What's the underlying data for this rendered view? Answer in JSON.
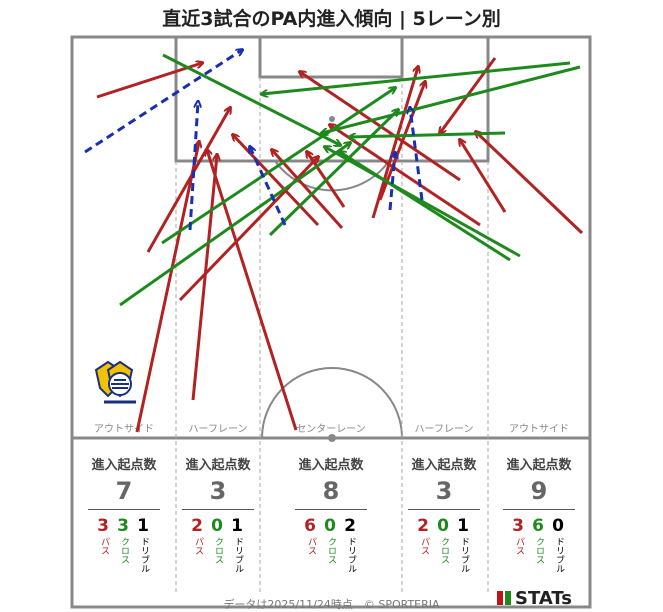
{
  "title": "直近3試合のPA内進入傾向 | 5レーン別",
  "footer": "データは2025/11/24時点　© SPORTERIA",
  "brand": "STATs",
  "colors": {
    "pass": "#b22222",
    "cross": "#1e8a1e",
    "dribble": "#1a2fb0",
    "line": "#888888"
  },
  "chart_data": {
    "type": "pitch-arrows",
    "lanes": [
      {
        "name": "アウトサイド",
        "head": "進入起点数",
        "total": "7",
        "pass": "3",
        "cross": "3",
        "dribble": "1"
      },
      {
        "name": "ハーフレーン",
        "head": "進入起点数",
        "total": "3",
        "pass": "2",
        "cross": "0",
        "dribble": "1"
      },
      {
        "name": "センターレーン",
        "head": "進入起点数",
        "total": "8",
        "pass": "6",
        "cross": "0",
        "dribble": "2"
      },
      {
        "name": "ハーフレーン",
        "head": "進入起点数",
        "total": "3",
        "pass": "2",
        "cross": "0",
        "dribble": "1"
      },
      {
        "name": "アウトサイド",
        "head": "進入起点数",
        "total": "9",
        "pass": "3",
        "cross": "6",
        "dribble": "0"
      }
    ],
    "labels": {
      "pass": "パス",
      "cross": "クロス",
      "dribble": "ドリブル"
    },
    "arrows": [
      {
        "type": "pass",
        "from": [
          97,
          97
        ],
        "to": [
          202,
          63
        ]
      },
      {
        "type": "pass",
        "from": [
          137,
          432
        ],
        "to": [
          199,
          142
        ]
      },
      {
        "type": "pass",
        "from": [
          148,
          252
        ],
        "to": [
          230,
          108
        ]
      },
      {
        "type": "pass",
        "from": [
          193,
          400
        ],
        "to": [
          217,
          155
        ]
      },
      {
        "type": "pass",
        "from": [
          180,
          300
        ],
        "to": [
          318,
          157
        ]
      },
      {
        "type": "pass",
        "from": [
          296,
          430
        ],
        "to": [
          207,
          150
        ]
      },
      {
        "type": "pass",
        "from": [
          318,
          225
        ],
        "to": [
          233,
          135
        ]
      },
      {
        "type": "pass",
        "from": [
          342,
          228
        ],
        "to": [
          272,
          150
        ]
      },
      {
        "type": "pass",
        "from": [
          344,
          207
        ],
        "to": [
          307,
          152
        ]
      },
      {
        "type": "pass",
        "from": [
          373,
          218
        ],
        "to": [
          418,
          67
        ]
      },
      {
        "type": "pass",
        "from": [
          380,
          200
        ],
        "to": [
          425,
          82
        ]
      },
      {
        "type": "pass",
        "from": [
          480,
          225
        ],
        "to": [
          330,
          125
        ]
      },
      {
        "type": "pass",
        "from": [
          495,
          58
        ],
        "to": [
          440,
          133
        ]
      },
      {
        "type": "pass",
        "from": [
          505,
          212
        ],
        "to": [
          460,
          140
        ]
      },
      {
        "type": "pass",
        "from": [
          582,
          233
        ],
        "to": [
          476,
          132
        ]
      },
      {
        "type": "pass",
        "from": [
          460,
          180
        ],
        "to": [
          300,
          72
        ]
      },
      {
        "type": "cross",
        "from": [
          120,
          305
        ],
        "to": [
          350,
          143
        ]
      },
      {
        "type": "cross",
        "from": [
          163,
          55
        ],
        "to": [
          340,
          145
        ]
      },
      {
        "type": "cross",
        "from": [
          162,
          243
        ],
        "to": [
          395,
          88
        ]
      },
      {
        "type": "cross",
        "from": [
          570,
          63
        ],
        "to": [
          262,
          94
        ]
      },
      {
        "type": "cross",
        "from": [
          580,
          67
        ],
        "to": [
          322,
          133
        ]
      },
      {
        "type": "cross",
        "from": [
          505,
          133
        ],
        "to": [
          350,
          137
        ]
      },
      {
        "type": "cross",
        "from": [
          520,
          256
        ],
        "to": [
          325,
          147
        ]
      },
      {
        "type": "cross",
        "from": [
          510,
          260
        ],
        "to": [
          340,
          152
        ]
      },
      {
        "type": "cross",
        "from": [
          270,
          235
        ],
        "to": [
          398,
          110
        ]
      },
      {
        "type": "dribble",
        "from": [
          85,
          152
        ],
        "to": [
          242,
          50
        ]
      },
      {
        "type": "dribble",
        "from": [
          190,
          230
        ],
        "to": [
          198,
          102
        ]
      },
      {
        "type": "dribble",
        "from": [
          285,
          225
        ],
        "to": [
          250,
          147
        ]
      },
      {
        "type": "dribble",
        "from": [
          390,
          210
        ],
        "to": [
          395,
          153
        ]
      },
      {
        "type": "dribble",
        "from": [
          422,
          200
        ],
        "to": [
          410,
          108
        ]
      }
    ]
  }
}
